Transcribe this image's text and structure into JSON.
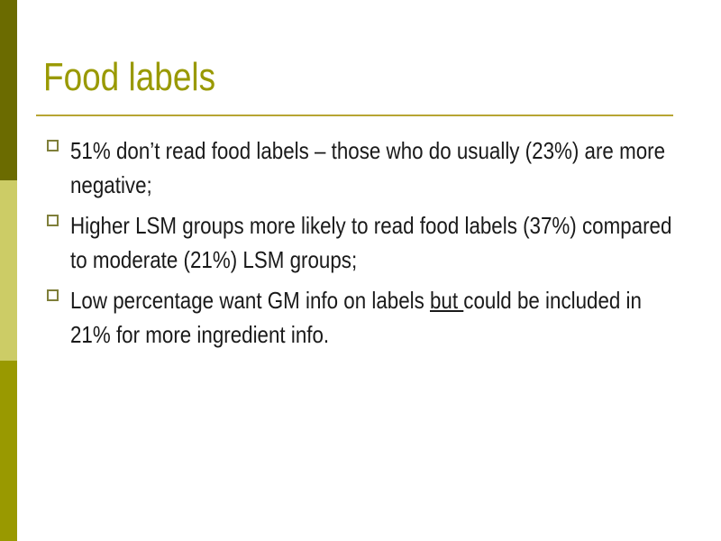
{
  "colors": {
    "sidebar_top": "#6b6b00",
    "sidebar_middle": "#cccc66",
    "sidebar_bottom": "#999900",
    "title": "#999900",
    "rule": "#b7a533",
    "bullet_box": "#7f7f3a"
  },
  "slide": {
    "title": "Food labels",
    "bullets": [
      {
        "text": "51% don’t read food labels – those who do usually (23%) are more negative;"
      },
      {
        "text": "Higher LSM groups more likely to read food labels (37%) compared to moderate (21%) LSM groups;"
      },
      {
        "text_before": "Low percentage want GM info on labels ",
        "underlined": "but ",
        "text_after": "could be included in 21% for more ingredient info."
      }
    ]
  }
}
